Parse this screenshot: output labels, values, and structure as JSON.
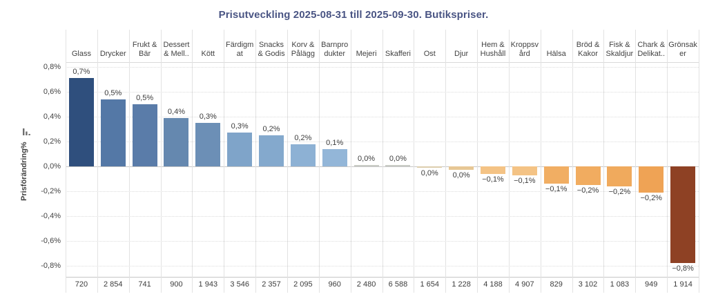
{
  "title": "Prisutveckling 2025-08-31 till 2025-09-30. Butikspriser.",
  "y_axis": {
    "label": "Prisförändring%",
    "sort_icon": "sort-descending-icon",
    "ticks": [
      "0,8%",
      "0,6%",
      "0,4%",
      "0,2%",
      "0,0%",
      "-0,2%",
      "-0,4%",
      "-0,6%",
      "-0,8%"
    ]
  },
  "chart_data": {
    "type": "bar",
    "title": "Prisutveckling 2025-08-31 till 2025-09-30. Butikspriser.",
    "xlabel": "",
    "ylabel": "Prisförändring%",
    "ylim": [
      -0.9,
      0.9
    ],
    "grid": true,
    "unit": "percent",
    "legend": "none",
    "categories": [
      "Glass",
      "Drycker",
      "Frukt & Bär",
      "Dessert & Mell..",
      "Kött",
      "Färdigmat",
      "Snacks & Godis",
      "Korv & Pålägg",
      "Barnprodukter",
      "Mejeri",
      "Skafferi",
      "Ost",
      "Djur",
      "Hem & Hushåll",
      "Kroppsvård",
      "Hälsa",
      "Bröd & Kakor",
      "Fisk & Skaldjur",
      "Chark & Delikat..",
      "Grönsaker"
    ],
    "header_lines": [
      "Glass",
      "Drycker",
      "Frukt &\nBär",
      "Dessert\n& Mell..",
      "Kött",
      "Färdigm\nat",
      "Snacks\n& Godis",
      "Korv &\nPålägg",
      "Barnpro\ndukter",
      "Mejeri",
      "Skafferi",
      "Ost",
      "Djur",
      "Hem &\nHushåll",
      "Kroppsv\nård",
      "Hälsa",
      "Bröd &\nKakor",
      "Fisk &\nSkaldjur",
      "Chark &\nDelikat..",
      "Grönsak\ner"
    ],
    "values": [
      0.71,
      0.54,
      0.5,
      0.39,
      0.35,
      0.27,
      0.25,
      0.18,
      0.14,
      0.01,
      0.01,
      -0.01,
      -0.03,
      -0.06,
      -0.07,
      -0.14,
      -0.15,
      -0.16,
      -0.21,
      -0.78
    ],
    "value_labels": [
      "0,7%",
      "0,5%",
      "0,5%",
      "0,4%",
      "0,3%",
      "0,3%",
      "0,2%",
      "0,2%",
      "0,1%",
      "0,0%",
      "0,0%",
      "0,0%",
      "0,0%",
      "−0,1%",
      "−0,1%",
      "−0,1%",
      "−0,2%",
      "−0,2%",
      "−0,2%",
      "−0,8%"
    ],
    "counts_row": [
      "720",
      "2 854",
      "741",
      "900",
      "1 943",
      "3 546",
      "2 357",
      "2 095",
      "960",
      "2 480",
      "6 588",
      "1 654",
      "1 228",
      "4 188",
      "4 907",
      "829",
      "3 102",
      "1 083",
      "949",
      "1 914"
    ],
    "bar_colors": [
      "#2f4f7d",
      "#5478a6",
      "#5a7ca9",
      "#6588af",
      "#6c8fb6",
      "#7fa4c9",
      "#84a9cd",
      "#8db1d4",
      "#93b6d8",
      "#c9ccc5",
      "#c9ccc5",
      "#dccdad",
      "#e7c795",
      "#f4c385",
      "#f4c385",
      "#f1ae63",
      "#f1ac60",
      "#f0aa5d",
      "#efa355",
      "#8e4124"
    ],
    "palette": {
      "positive_max": "#2f4f7d",
      "neutral": "#c9ccc5",
      "negative_max": "#8e4124",
      "title_color": "#4a5584"
    }
  }
}
